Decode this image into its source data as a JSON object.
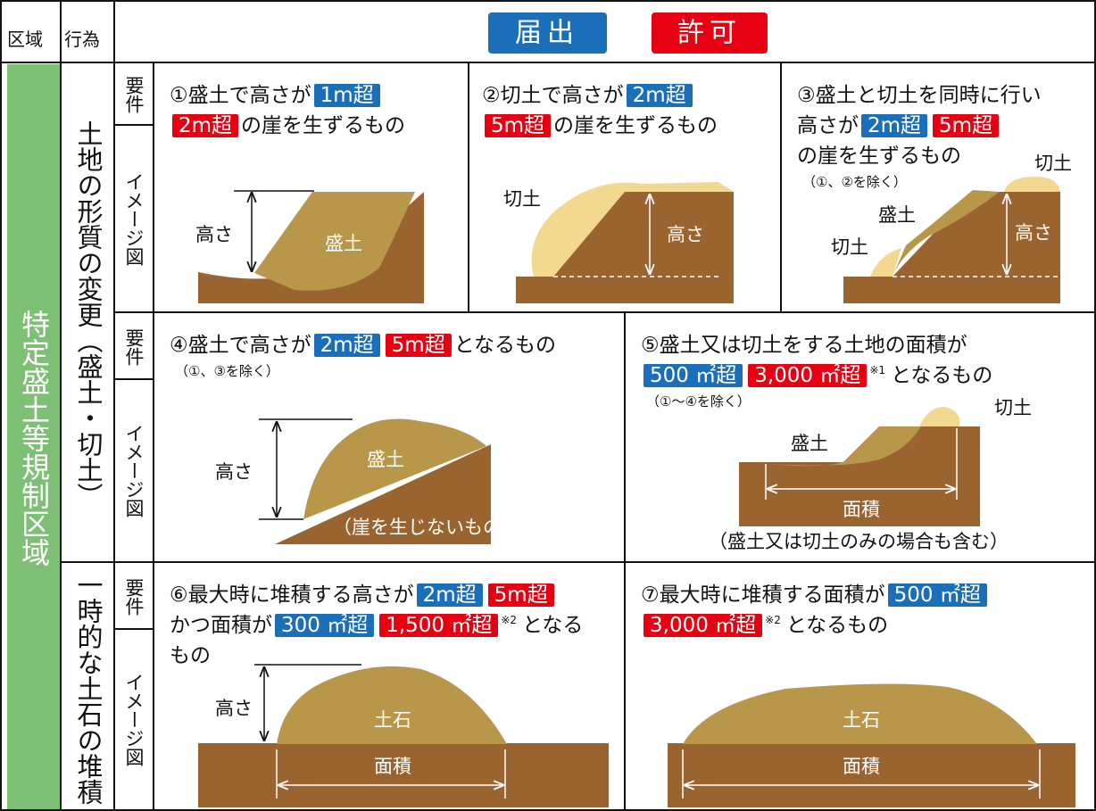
{
  "header": {
    "zone": "区域",
    "act": "行為",
    "notify": "届出",
    "permit": "許可"
  },
  "zone_label": "特定盛土等規制区域",
  "acts": [
    "土地の形質の変更（盛土・切土）",
    "一時的な土石の堆積"
  ],
  "row_labels": {
    "requirement": "要件",
    "image": "イメージ図"
  },
  "cells": [
    {
      "lines": [
        [
          "①盛土で高さが",
          {
            "text": "1m超",
            "style": "notify"
          }
        ],
        [
          {
            "text": "2m超",
            "style": "permit"
          },
          "の崖を生ずるもの"
        ]
      ],
      "figure": [
        "高さ",
        "盛土"
      ]
    },
    {
      "lines": [
        [
          "②切土で高さが",
          {
            "text": "2m超",
            "style": "notify"
          }
        ],
        [
          {
            "text": "5m超",
            "style": "permit"
          },
          "の崖を生ずるもの"
        ]
      ],
      "figure": [
        "切土",
        "高さ"
      ]
    },
    {
      "lines": [
        [
          "③盛土と切土を同時に行い"
        ],
        [
          "高さが",
          {
            "text": "2m超",
            "style": "notify"
          },
          {
            "text": "5m超",
            "style": "permit"
          }
        ],
        [
          "の崖を生ずるもの"
        ]
      ],
      "note": "（①、②を除く）",
      "figure": [
        "切土",
        "盛土",
        "切土",
        "高さ"
      ]
    },
    {
      "lines": [
        [
          "④盛土で高さが",
          {
            "text": "2m超",
            "style": "notify"
          },
          {
            "text": "5m超",
            "style": "permit"
          },
          "となるもの"
        ]
      ],
      "note": "（①、③を除く）",
      "figure": [
        "高さ",
        "盛土",
        "（崖を生じないもの）"
      ]
    },
    {
      "lines": [
        [
          "⑤盛土又は切土をする土地の面積が"
        ],
        [
          {
            "text": "500 ㎡超",
            "style": "notify"
          },
          {
            "text": "3,000 ㎡超",
            "style": "permit"
          },
          {
            "text": "※1",
            "style": "ref"
          },
          "となるもの"
        ]
      ],
      "note": "（①～④を除く）",
      "figure": [
        "切土",
        "盛土",
        "面積",
        "（盛土又は切土のみの場合も含む）"
      ]
    },
    {
      "lines": [
        [
          "⑥最大時に堆積する高さが",
          {
            "text": "2m超",
            "style": "notify"
          },
          {
            "text": "5m超",
            "style": "permit"
          }
        ],
        [
          "かつ面積が",
          {
            "text": "300 ㎡超",
            "style": "notify"
          },
          {
            "text": "1,500 ㎡超",
            "style": "permit"
          },
          {
            "text": "※2",
            "style": "ref"
          },
          "となる"
        ],
        [
          "もの"
        ]
      ],
      "figure": [
        "高さ",
        "土石",
        "面積"
      ]
    },
    {
      "lines": [
        [
          "⑦最大時に堆積する面積が",
          {
            "text": "500 ㎡超",
            "style": "notify"
          }
        ],
        [
          {
            "text": "3,000 ㎡超",
            "style": "permit"
          },
          {
            "text": "※2",
            "style": "ref"
          },
          "となるもの"
        ]
      ],
      "figure": [
        "土石",
        "面積"
      ]
    }
  ]
}
